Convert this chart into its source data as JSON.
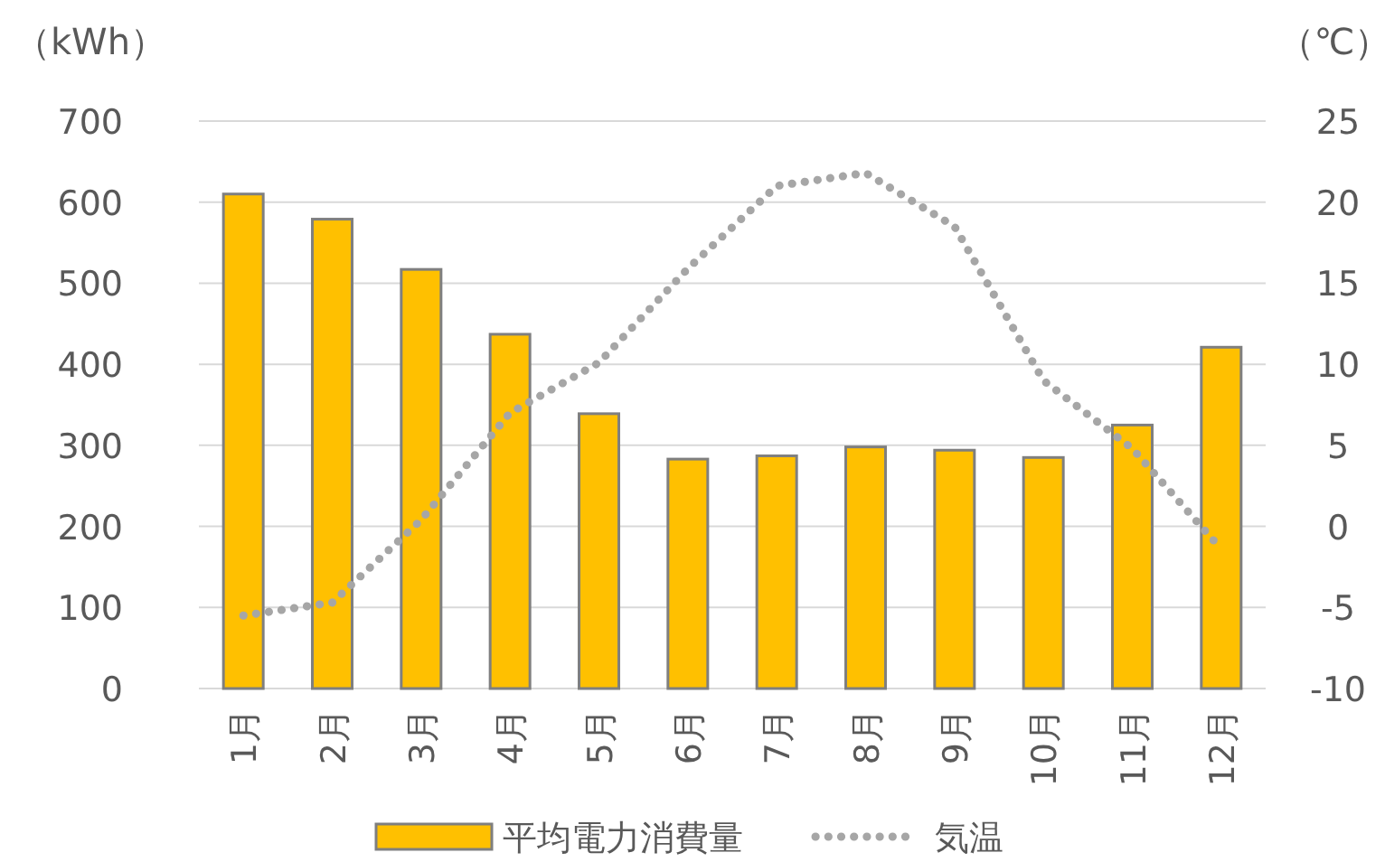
{
  "chart_data": {
    "type": "bar",
    "ylabel": "（kWh）",
    "y2label": "（℃）",
    "categories": [
      "1月",
      "2月",
      "3月",
      "4月",
      "5月",
      "6月",
      "7月",
      "8月",
      "9月",
      "10月",
      "11月",
      "12月"
    ],
    "series": [
      {
        "name": "平均電力消費量",
        "color": "#ffc000",
        "values": [
          610,
          579,
          517,
          437,
          339,
          283,
          287,
          298,
          294,
          285,
          325,
          421
        ]
      },
      {
        "name": "気温",
        "type": "line",
        "axis": "y2",
        "line_style": "dotted",
        "color": "#a6a6a6",
        "values": [
          -5.5,
          -4.7,
          0.4,
          7.0,
          10.1,
          15.9,
          21.0,
          21.8,
          18.5,
          9.0,
          4.8,
          -1.4
        ]
      }
    ],
    "ylim": [
      0,
      700
    ],
    "yticks": [
      0,
      100,
      200,
      300,
      400,
      500,
      600,
      700
    ],
    "y2lim": [
      -10,
      25
    ],
    "y2ticks": [
      -10,
      -5,
      0,
      5,
      10,
      15,
      20,
      25
    ],
    "grid": "y",
    "legend": "bottom"
  }
}
